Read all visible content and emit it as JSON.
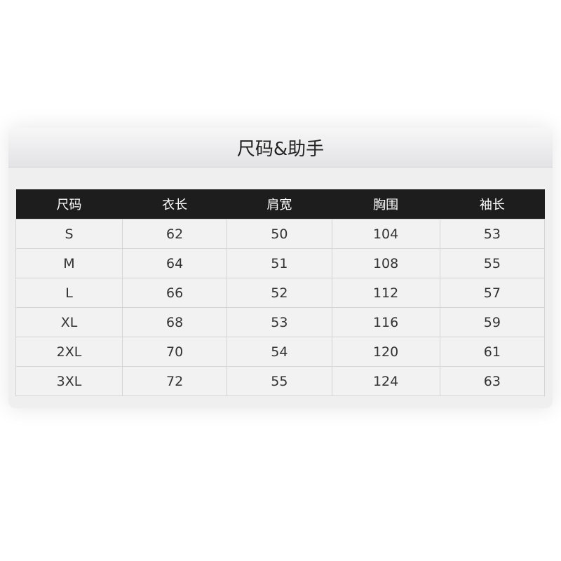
{
  "title": "尺码&助手",
  "table": {
    "headers": [
      "尺码",
      "衣长",
      "肩宽",
      "胸围",
      "袖长"
    ],
    "rows": [
      [
        "S",
        "62",
        "50",
        "104",
        "53"
      ],
      [
        "M",
        "64",
        "51",
        "108",
        "55"
      ],
      [
        "L",
        "66",
        "52",
        "112",
        "57"
      ],
      [
        "XL",
        "68",
        "53",
        "116",
        "59"
      ],
      [
        "2XL",
        "70",
        "54",
        "120",
        "61"
      ],
      [
        "3XL",
        "72",
        "55",
        "124",
        "63"
      ]
    ]
  }
}
